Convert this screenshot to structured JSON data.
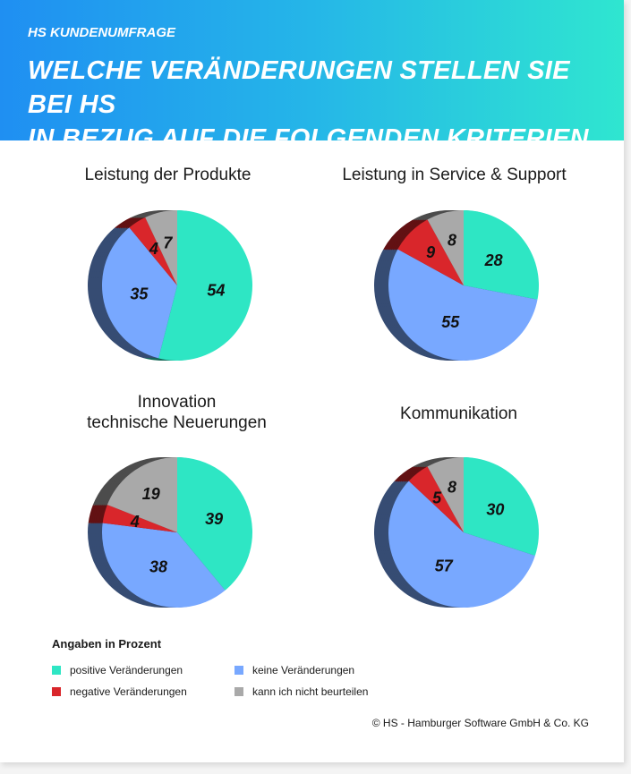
{
  "header": {
    "kicker": "HS KUNDENUMFRAGE",
    "title_line1": "WELCHE VERÄNDERUNGEN STELLEN SIE BEI HS",
    "title_line2": "IN BEZUG AUF DIE FOLGENDEN KRITERIEN FEST?"
  },
  "colors": {
    "positive": "#2ee6c4",
    "keine": "#78a8ff",
    "negative": "#d9262b",
    "kann_nicht": "#a9a9a9"
  },
  "chart_data": [
    {
      "type": "pie",
      "title": "Leistung der Produkte",
      "title_lines": [
        "Leistung der Produkte"
      ],
      "categories": [
        "positive Veränderungen",
        "keine Veränderungen",
        "negative Veränderungen",
        "kann ich nicht beurteilen"
      ],
      "values": [
        54,
        35,
        4,
        7
      ],
      "labels": [
        "54",
        "35",
        "4",
        "7"
      ]
    },
    {
      "type": "pie",
      "title": "Leistung in Service & Support",
      "title_lines": [
        "Leistung in Service & Support"
      ],
      "categories": [
        "positive Veränderungen",
        "keine Veränderungen",
        "negative Veränderungen",
        "kann ich nicht beurteilen"
      ],
      "values": [
        28,
        55,
        9,
        8
      ],
      "labels": [
        "28",
        "55",
        "9",
        "8"
      ]
    },
    {
      "type": "pie",
      "title": "Innovation technische Neuerungen",
      "title_lines": [
        "Innovation",
        "technische Neuerungen"
      ],
      "categories": [
        "positive Veränderungen",
        "keine Veränderungen",
        "negative Veränderungen",
        "kann ich nicht beurteilen"
      ],
      "values": [
        39,
        38,
        4,
        19
      ],
      "labels": [
        "39",
        "38",
        "4",
        "19"
      ]
    },
    {
      "type": "pie",
      "title": "Kommunikation",
      "title_lines": [
        "Kommunikation"
      ],
      "categories": [
        "positive Veränderungen",
        "keine Veränderungen",
        "negative Veränderungen",
        "kann ich nicht beurteilen"
      ],
      "values": [
        30,
        57,
        5,
        8
      ],
      "labels": [
        "30",
        "57",
        "5",
        "8"
      ]
    }
  ],
  "legend": {
    "title": "Angaben in Prozent",
    "items": [
      {
        "label": "positive Veränderungen",
        "color": "#2ee6c4"
      },
      {
        "label": "keine Veränderungen",
        "color": "#78a8ff"
      },
      {
        "label": "negative Veränderungen",
        "color": "#d9262b"
      },
      {
        "label": "kann ich nicht beurteilen",
        "color": "#a9a9a9"
      }
    ]
  },
  "footer": {
    "copyright": "©  HS - Hamburger Software GmbH & Co. KG"
  }
}
